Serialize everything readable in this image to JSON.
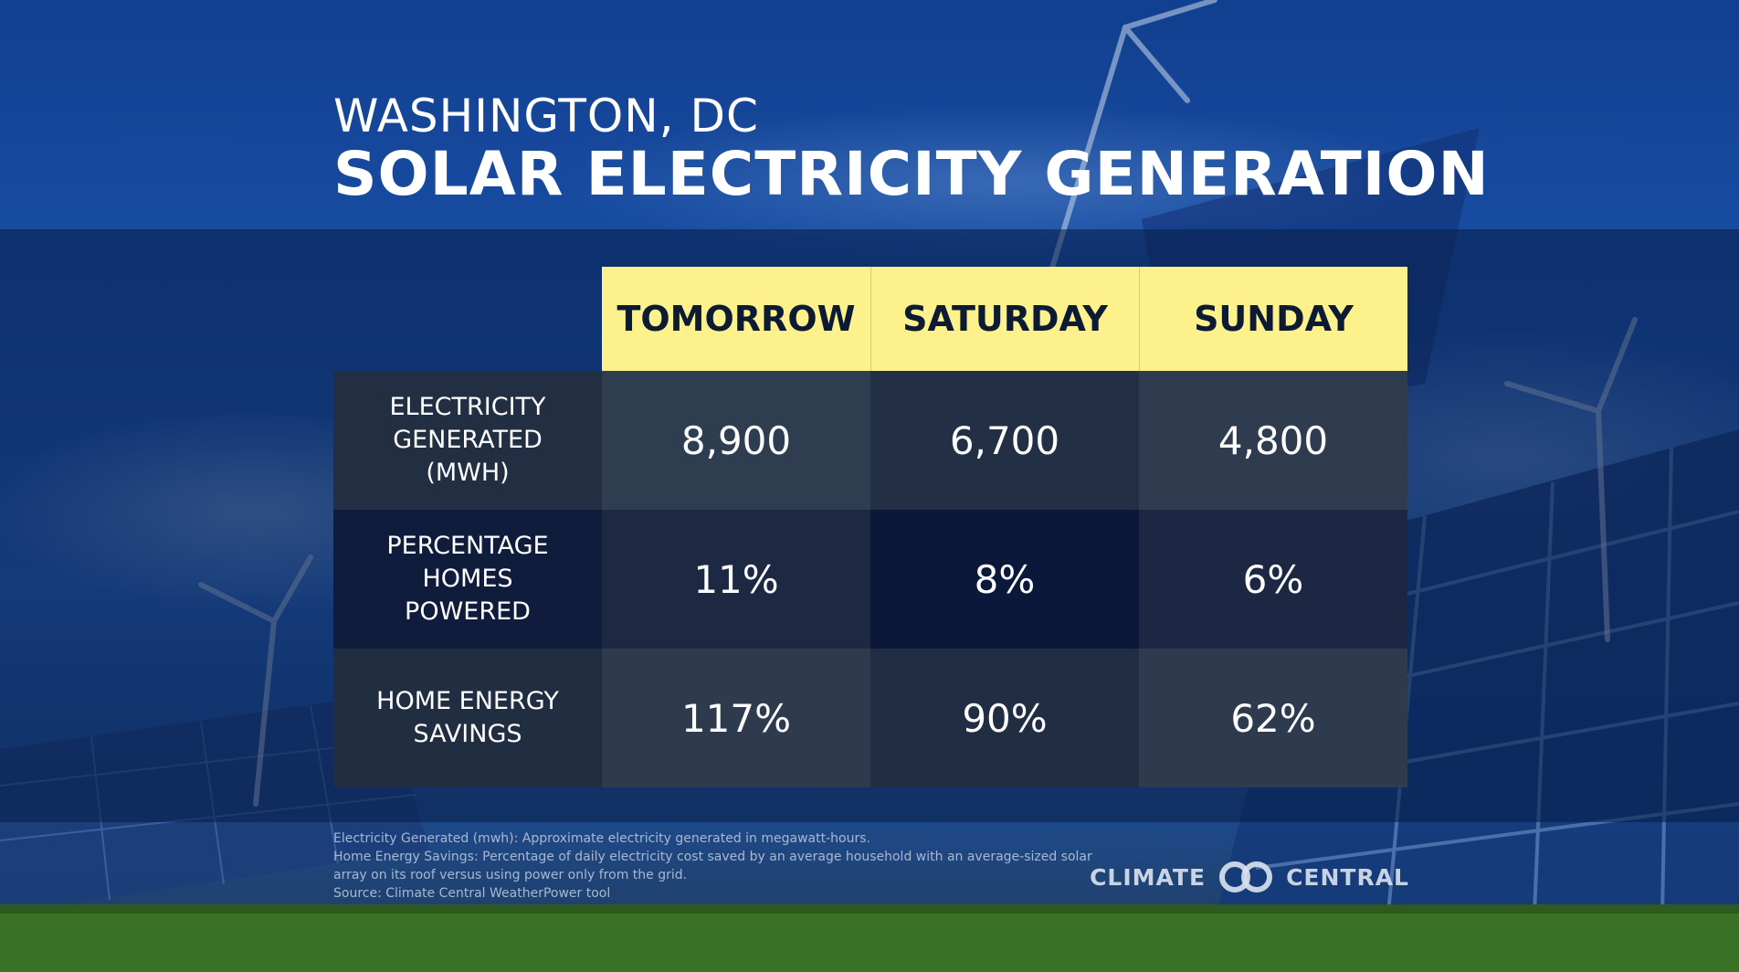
{
  "header": {
    "city": "WASHINGTON, DC",
    "title": "SOLAR ELECTRICITY GENERATION"
  },
  "table": {
    "columns": [
      "TOMORROW",
      "SATURDAY",
      "SUNDAY"
    ],
    "rows": [
      {
        "label_lines": [
          "ELECTRICITY",
          "GENERATED",
          "(MWH)"
        ],
        "values": [
          "8,900",
          "6,700",
          "4,800"
        ]
      },
      {
        "label_lines": [
          "PERCENTAGE",
          "HOMES",
          "POWERED"
        ],
        "values": [
          "11%",
          "8%",
          "6%"
        ]
      },
      {
        "label_lines": [
          "HOME ENERGY",
          "SAVINGS"
        ],
        "values": [
          "117%",
          "90%",
          "62%"
        ]
      }
    ]
  },
  "footnotes": [
    "Electricity Generated (mwh): Approximate electricity generated in megawatt-hours.",
    "Home Energy Savings: Percentage of daily electricity cost saved by an average household with an average-sized solar",
    "array on its roof versus using power only from the grid.",
    "Source: Climate Central WeatherPower tool"
  ],
  "logo": {
    "left_text": "CLIMATE",
    "right_text": "CENTRAL",
    "icon": "interlocking-rings-icon"
  },
  "colors": {
    "header_cell": "#fdf18c",
    "header_text": "#0c1a33",
    "band": "#081c46"
  }
}
